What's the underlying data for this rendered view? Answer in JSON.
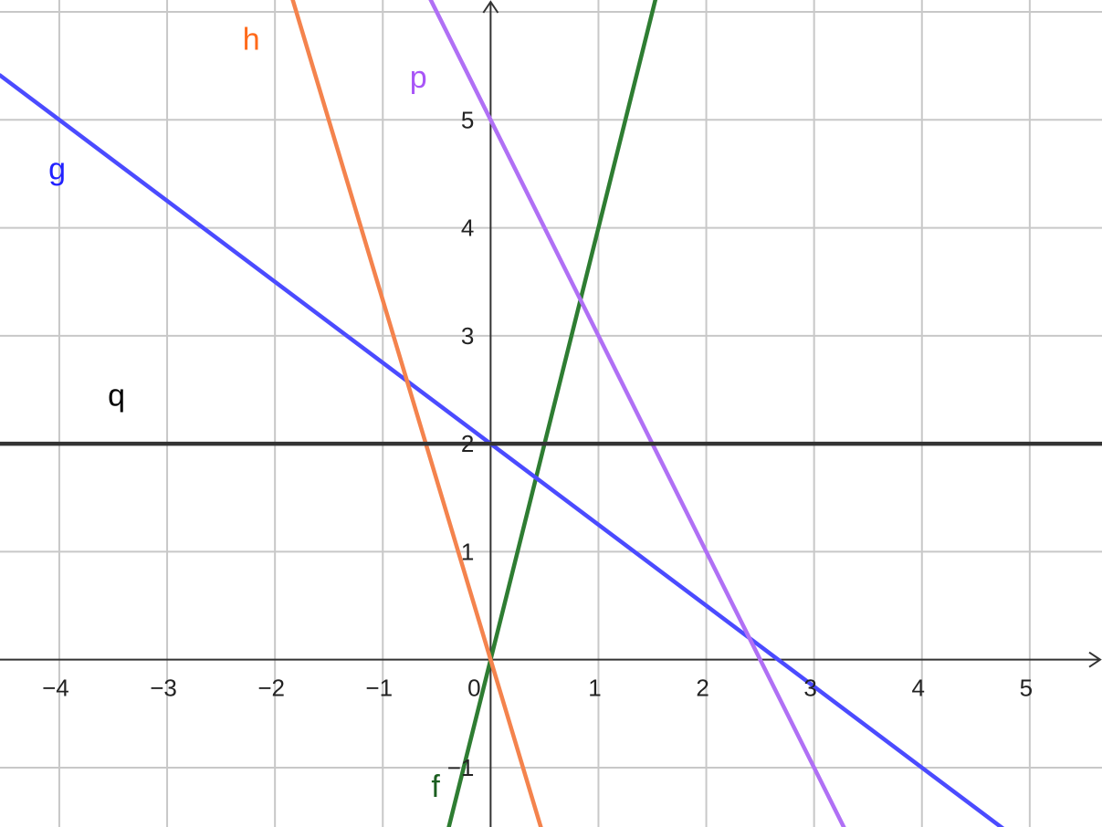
{
  "chart_data": {
    "type": "line",
    "xlim": [
      -4.55,
      5.67
    ],
    "ylim": [
      -1.55,
      6.11
    ],
    "grid": true,
    "x_ticks": [
      -4,
      -3,
      -2,
      -1,
      0,
      1,
      2,
      3,
      4,
      5
    ],
    "y_ticks": [
      -1,
      1,
      2,
      3,
      4,
      5
    ],
    "x_tick_labels": [
      "−4",
      "−3",
      "−2",
      "−1",
      "0",
      "1",
      "2",
      "3",
      "4",
      "5"
    ],
    "y_tick_labels": [
      "−1",
      "1",
      "2",
      "3",
      "4",
      "5"
    ],
    "series": [
      {
        "name": "f",
        "slope": 4,
        "intercept": 0,
        "color": "#2e7d32",
        "label_pos": [
          -0.55,
          -1.27
        ]
      },
      {
        "name": "g",
        "slope": -0.75,
        "intercept": 2,
        "color": "#4b4bff",
        "label_pos": [
          -4.1,
          4.45
        ]
      },
      {
        "name": "h",
        "slope": -3.33,
        "intercept": 0,
        "color": "#f4834d",
        "label_pos": [
          -2.3,
          5.65
        ]
      },
      {
        "name": "p",
        "slope": -2,
        "intercept": 5,
        "color": "#b070f5",
        "label_pos": [
          -0.75,
          5.3
        ]
      },
      {
        "name": "q",
        "slope": 0,
        "intercept": 2,
        "color": "#333333",
        "label_pos": [
          -3.55,
          2.35
        ]
      }
    ],
    "label_colors": {
      "f": "#1b5e20",
      "g": "#2121ff",
      "h": "#ff6a1a",
      "p": "#a855f7",
      "q": "#000000"
    }
  }
}
